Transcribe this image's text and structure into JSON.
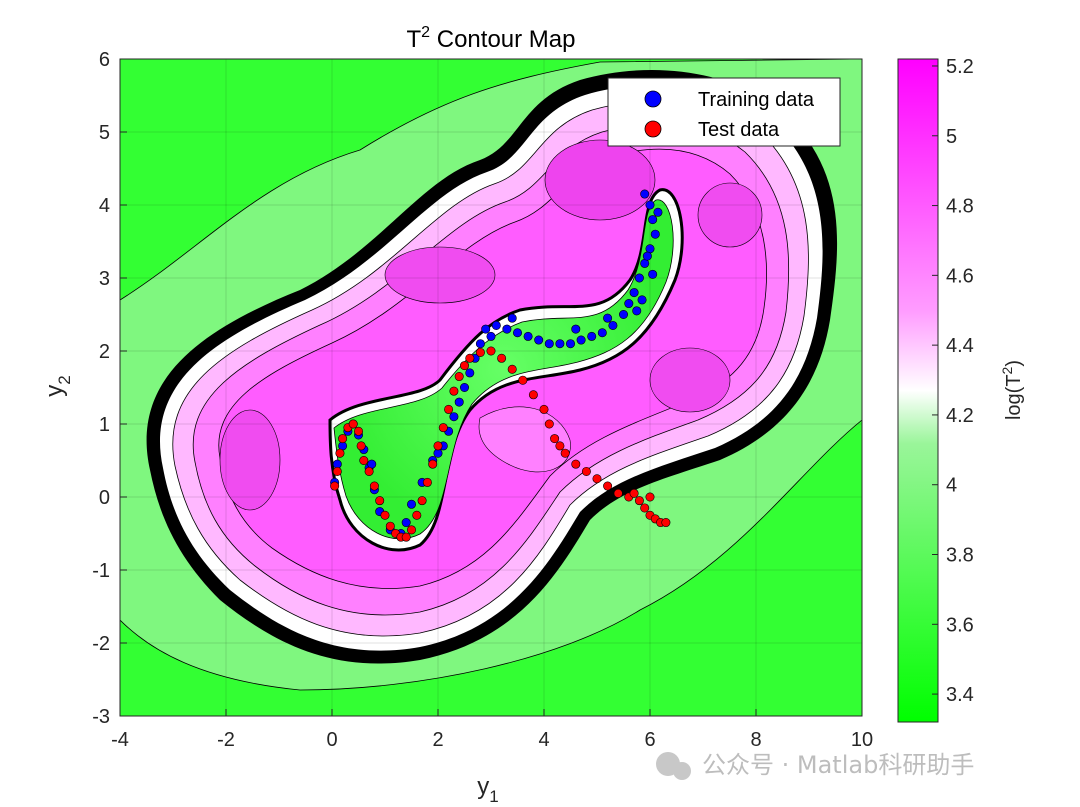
{
  "chart_data": {
    "type": "contour",
    "title": "T",
    "title_sup": "2",
    "title_rest": " Contour Map",
    "xlabel": "y",
    "xlabel_sub": "1",
    "ylabel": "y",
    "ylabel_sub": "2",
    "xlim": [
      -4,
      10
    ],
    "ylim": [
      -3,
      6
    ],
    "xticks": [
      "-4",
      "-2",
      "0",
      "2",
      "4",
      "6",
      "8",
      "10"
    ],
    "yticks": [
      "-3",
      "-2",
      "-1",
      "0",
      "1",
      "2",
      "3",
      "4",
      "5",
      "6"
    ],
    "grid": true,
    "legend_position": "top-right",
    "colorbar": {
      "label": "log(T",
      "label_sup": "2",
      "label_end": ")",
      "range": [
        3.32,
        5.22
      ],
      "ticks": [
        "3.4",
        "3.6",
        "3.8",
        "4",
        "4.2",
        "4.4",
        "4.6",
        "4.8",
        "5",
        "5.2"
      ],
      "colormap": [
        "#00ff00",
        "#ffffff",
        "#ff00ff"
      ]
    },
    "series": [
      {
        "name": "Training data",
        "color": "#0000ff",
        "points": [
          [
            5.9,
            4.15
          ],
          [
            6.0,
            4.0
          ],
          [
            6.05,
            3.8
          ],
          [
            6.1,
            3.6
          ],
          [
            6.0,
            3.4
          ],
          [
            5.9,
            3.2
          ],
          [
            5.8,
            3.0
          ],
          [
            5.7,
            2.8
          ],
          [
            5.6,
            2.65
          ],
          [
            5.5,
            2.5
          ],
          [
            5.3,
            2.35
          ],
          [
            5.1,
            2.25
          ],
          [
            4.9,
            2.2
          ],
          [
            4.7,
            2.15
          ],
          [
            4.5,
            2.1
          ],
          [
            4.3,
            2.1
          ],
          [
            4.1,
            2.1
          ],
          [
            3.9,
            2.15
          ],
          [
            3.7,
            2.2
          ],
          [
            3.5,
            2.25
          ],
          [
            3.3,
            2.3
          ],
          [
            3.1,
            2.35
          ],
          [
            2.9,
            2.3
          ],
          [
            2.8,
            2.1
          ],
          [
            2.7,
            1.9
          ],
          [
            2.6,
            1.7
          ],
          [
            2.5,
            1.5
          ],
          [
            2.4,
            1.3
          ],
          [
            2.3,
            1.1
          ],
          [
            2.2,
            0.9
          ],
          [
            2.1,
            0.7
          ],
          [
            1.9,
            0.5
          ],
          [
            1.7,
            0.2
          ],
          [
            1.5,
            -0.1
          ],
          [
            1.4,
            -0.35
          ],
          [
            1.3,
            -0.5
          ],
          [
            1.1,
            -0.45
          ],
          [
            0.9,
            -0.2
          ],
          [
            0.8,
            0.1
          ],
          [
            0.7,
            0.4
          ],
          [
            0.6,
            0.65
          ],
          [
            0.5,
            0.85
          ],
          [
            0.4,
            1.0
          ],
          [
            0.3,
            0.9
          ],
          [
            0.2,
            0.7
          ],
          [
            0.1,
            0.45
          ],
          [
            0.05,
            0.2
          ],
          [
            0.75,
            0.45
          ],
          [
            2.0,
            0.6
          ],
          [
            6.15,
            3.9
          ],
          [
            5.95,
            3.3
          ],
          [
            5.75,
            2.55
          ],
          [
            5.2,
            2.45
          ],
          [
            4.6,
            2.3
          ],
          [
            3.4,
            2.45
          ],
          [
            3.0,
            2.2
          ],
          [
            5.85,
            2.7
          ],
          [
            6.05,
            3.05
          ]
        ]
      },
      {
        "name": "Test data",
        "color": "#ff0000",
        "points": [
          [
            0.05,
            0.15
          ],
          [
            0.1,
            0.35
          ],
          [
            0.15,
            0.6
          ],
          [
            0.2,
            0.8
          ],
          [
            0.3,
            0.95
          ],
          [
            0.4,
            1.0
          ],
          [
            0.5,
            0.9
          ],
          [
            0.55,
            0.7
          ],
          [
            0.6,
            0.5
          ],
          [
            0.7,
            0.35
          ],
          [
            0.8,
            0.15
          ],
          [
            0.9,
            -0.05
          ],
          [
            1.0,
            -0.25
          ],
          [
            1.1,
            -0.4
          ],
          [
            1.2,
            -0.5
          ],
          [
            1.3,
            -0.55
          ],
          [
            1.4,
            -0.55
          ],
          [
            1.5,
            -0.45
          ],
          [
            1.6,
            -0.25
          ],
          [
            1.7,
            -0.05
          ],
          [
            1.8,
            0.2
          ],
          [
            1.9,
            0.45
          ],
          [
            2.0,
            0.7
          ],
          [
            2.1,
            0.95
          ],
          [
            2.2,
            1.2
          ],
          [
            2.3,
            1.45
          ],
          [
            2.4,
            1.65
          ],
          [
            2.5,
            1.8
          ],
          [
            2.6,
            1.9
          ],
          [
            2.8,
            1.98
          ],
          [
            3.0,
            2.0
          ],
          [
            3.2,
            1.9
          ],
          [
            3.4,
            1.75
          ],
          [
            3.6,
            1.6
          ],
          [
            3.8,
            1.4
          ],
          [
            4.0,
            1.2
          ],
          [
            4.1,
            1.0
          ],
          [
            4.2,
            0.8
          ],
          [
            4.4,
            0.6
          ],
          [
            4.6,
            0.45
          ],
          [
            4.8,
            0.35
          ],
          [
            5.0,
            0.25
          ],
          [
            5.2,
            0.15
          ],
          [
            5.4,
            0.05
          ],
          [
            5.6,
            0.0
          ],
          [
            5.8,
            -0.05
          ],
          [
            5.9,
            -0.15
          ],
          [
            6.0,
            -0.25
          ],
          [
            6.1,
            -0.3
          ],
          [
            6.2,
            -0.35
          ],
          [
            6.3,
            -0.35
          ],
          [
            5.7,
            0.05
          ],
          [
            6.0,
            0.0
          ],
          [
            4.3,
            0.7
          ]
        ]
      }
    ]
  },
  "watermark": "公众号 · Matlab科研助手"
}
